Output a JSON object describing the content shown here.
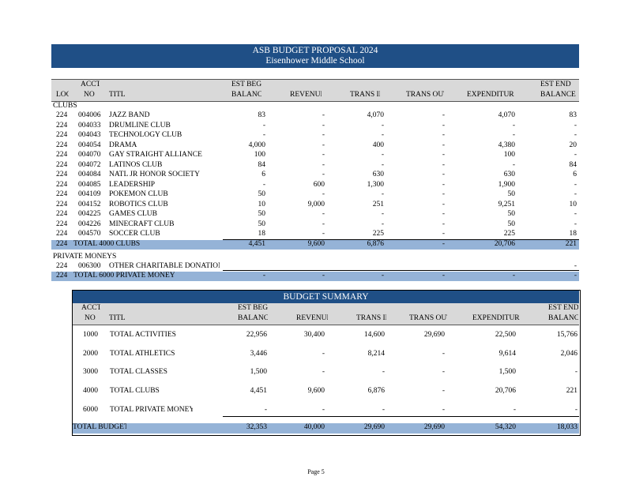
{
  "banner": {
    "title": "ASB BUDGET PROPOSAL 2024",
    "school": "Eisenhower Middle School"
  },
  "table_headers": {
    "loc": "LOC",
    "acct_top": "ACCT",
    "acct_bottom": "NO",
    "title": "TITLE",
    "est_beg_top": "EST BEG",
    "est_beg_bottom": "BALANCE",
    "revenue": "REVENUE",
    "trans_in": "TRANS IN",
    "trans_out": "TRANS OUT",
    "expenditures": "EXPENDITURES",
    "est_end_top": "EST END",
    "est_end_bottom": "BALANCE"
  },
  "clubs": {
    "section_label": "CLUBS",
    "rows": [
      {
        "loc": "224",
        "acct": "004006",
        "title": "JAZZ BAND",
        "est_beg": "83",
        "revenue": "-",
        "trans_in": "4,070",
        "trans_out": "-",
        "expenditures": "4,070",
        "est_end": "83"
      },
      {
        "loc": "224",
        "acct": "004033",
        "title": "DRUMLINE CLUB",
        "est_beg": "-",
        "revenue": "-",
        "trans_in": "-",
        "trans_out": "-",
        "expenditures": "-",
        "est_end": "-"
      },
      {
        "loc": "224",
        "acct": "004043",
        "title": "TECHNOLOGY CLUB",
        "est_beg": "-",
        "revenue": "-",
        "trans_in": "-",
        "trans_out": "-",
        "expenditures": "-",
        "est_end": "-"
      },
      {
        "loc": "224",
        "acct": "004054",
        "title": "DRAMA",
        "est_beg": "4,000",
        "revenue": "-",
        "trans_in": "400",
        "trans_out": "-",
        "expenditures": "4,380",
        "est_end": "20"
      },
      {
        "loc": "224",
        "acct": "004070",
        "title": "GAY STRAIGHT ALLIANCE",
        "est_beg": "100",
        "revenue": "-",
        "trans_in": "-",
        "trans_out": "-",
        "expenditures": "100",
        "est_end": "-"
      },
      {
        "loc": "224",
        "acct": "004072",
        "title": "LATINOS CLUB",
        "est_beg": "84",
        "revenue": "-",
        "trans_in": "-",
        "trans_out": "-",
        "expenditures": "-",
        "est_end": "84"
      },
      {
        "loc": "224",
        "acct": "004084",
        "title": "NATL JR HONOR SOCIETY",
        "est_beg": "6",
        "revenue": "-",
        "trans_in": "630",
        "trans_out": "-",
        "expenditures": "630",
        "est_end": "6"
      },
      {
        "loc": "224",
        "acct": "004085",
        "title": "LEADERSHIP",
        "est_beg": "-",
        "revenue": "600",
        "trans_in": "1,300",
        "trans_out": "-",
        "expenditures": "1,900",
        "est_end": "-"
      },
      {
        "loc": "224",
        "acct": "004109",
        "title": "POKEMON CLUB",
        "est_beg": "50",
        "revenue": "-",
        "trans_in": "-",
        "trans_out": "-",
        "expenditures": "50",
        "est_end": "-"
      },
      {
        "loc": "224",
        "acct": "004152",
        "title": "ROBOTICS CLUB",
        "est_beg": "10",
        "revenue": "9,000",
        "trans_in": "251",
        "trans_out": "-",
        "expenditures": "9,251",
        "est_end": "10"
      },
      {
        "loc": "224",
        "acct": "004225",
        "title": "GAMES CLUB",
        "est_beg": "50",
        "revenue": "-",
        "trans_in": "-",
        "trans_out": "-",
        "expenditures": "50",
        "est_end": "-"
      },
      {
        "loc": "224",
        "acct": "004226",
        "title": "MINECRAFT CLUB",
        "est_beg": "50",
        "revenue": "-",
        "trans_in": "-",
        "trans_out": "-",
        "expenditures": "50",
        "est_end": "-"
      },
      {
        "loc": "224",
        "acct": "004570",
        "title": "SOCCER CLUB",
        "est_beg": "18",
        "revenue": "-",
        "trans_in": "225",
        "trans_out": "-",
        "expenditures": "225",
        "est_end": "18"
      }
    ],
    "total": {
      "loc": "224",
      "title": "TOTAL 4000 CLUBS",
      "est_beg": "4,451",
      "revenue": "9,600",
      "trans_in": "6,876",
      "trans_out": "-",
      "expenditures": "20,706",
      "est_end": "221"
    }
  },
  "private": {
    "section_label": "PRIVATE MONEYS",
    "rows": [
      {
        "loc": "224",
        "acct": "006300",
        "title": "OTHER CHARITABLE DONATIONS",
        "est_beg": "",
        "revenue": "",
        "trans_in": "",
        "trans_out": "",
        "expenditures": "",
        "est_end": "-"
      }
    ],
    "total": {
      "loc": "224",
      "title": "TOTAL 6000 PRIVATE MONEYS",
      "est_beg": "-",
      "revenue": "-",
      "trans_in": "-",
      "trans_out": "-",
      "expenditures": "-",
      "est_end": "-"
    }
  },
  "summary": {
    "title": "BUDGET SUMMARY",
    "rows": [
      {
        "acct": "1000",
        "title": "TOTAL ACTIVITIES",
        "est_beg": "22,956",
        "revenue": "30,400",
        "trans_in": "14,600",
        "trans_out": "29,690",
        "expenditures": "22,500",
        "est_end": "15,766"
      },
      {
        "acct": "2000",
        "title": "TOTAL ATHLETICS",
        "est_beg": "3,446",
        "revenue": "-",
        "trans_in": "8,214",
        "trans_out": "-",
        "expenditures": "9,614",
        "est_end": "2,046"
      },
      {
        "acct": "3000",
        "title": "TOTAL CLASSES",
        "est_beg": "1,500",
        "revenue": "-",
        "trans_in": "-",
        "trans_out": "-",
        "expenditures": "1,500",
        "est_end": "-"
      },
      {
        "acct": "4000",
        "title": "TOTAL CLUBS",
        "est_beg": "4,451",
        "revenue": "9,600",
        "trans_in": "6,876",
        "trans_out": "-",
        "expenditures": "20,706",
        "est_end": "221"
      },
      {
        "acct": "6000",
        "title": "TOTAL PRIVATE MONEYS",
        "est_beg": "-",
        "revenue": "-",
        "trans_in": "-",
        "trans_out": "-",
        "expenditures": "-",
        "est_end": "-"
      }
    ],
    "total": {
      "title": "TOTAL BUDGET",
      "est_beg": "32,353",
      "revenue": "40,000",
      "trans_in": "29,690",
      "trans_out": "29,690",
      "expenditures": "54,320",
      "est_end": "18,033"
    }
  },
  "footer": {
    "page": "Page 5"
  }
}
